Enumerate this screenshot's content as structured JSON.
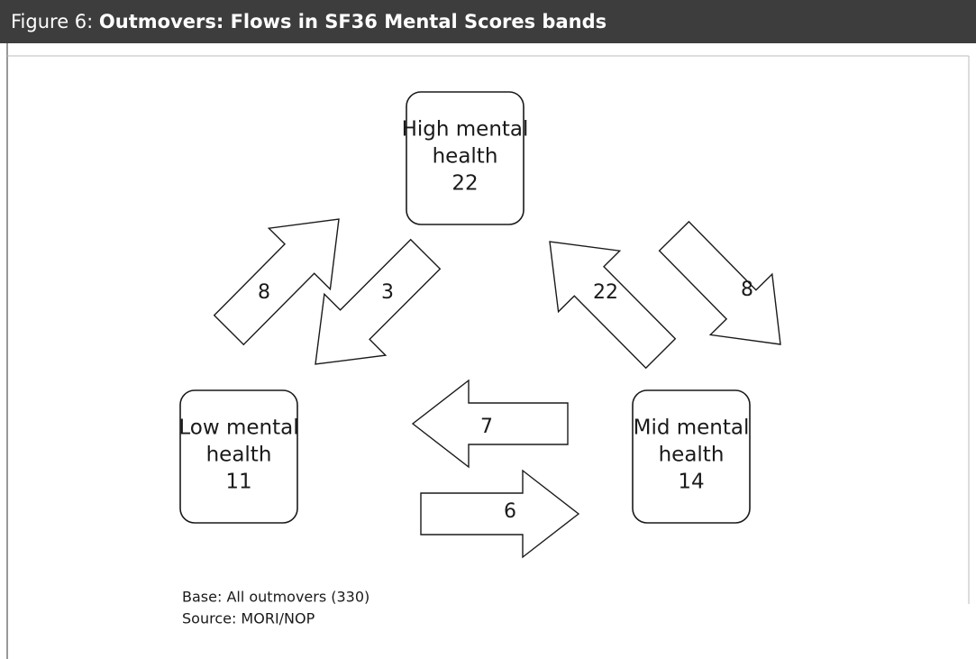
{
  "header": {
    "label": "Figure 6:",
    "title": "Outmovers: Flows in SF36 Mental Scores bands"
  },
  "nodes": [
    {
      "lines": [
        "High mental",
        "health"
      ],
      "value": 22
    },
    {
      "lines": [
        "Low mental",
        "health"
      ],
      "value": 11
    },
    {
      "lines": [
        "Mid mental",
        "health"
      ],
      "value": 14
    }
  ],
  "flows": [
    {
      "from": "Low mental health",
      "to": "High mental health",
      "value": 8
    },
    {
      "from": "High mental health",
      "to": "Low mental health",
      "value": 3
    },
    {
      "from": "Mid mental health",
      "to": "High mental health",
      "value": 22
    },
    {
      "from": "High mental health",
      "to": "Mid mental health",
      "value": 8
    },
    {
      "from": "Mid mental health",
      "to": "Low mental health",
      "value": 7
    },
    {
      "from": "Low mental health",
      "to": "Mid mental health",
      "value": 6
    }
  ],
  "notes": [
    "Base: All outmovers (330)",
    "Source: MORI/NOP"
  ]
}
